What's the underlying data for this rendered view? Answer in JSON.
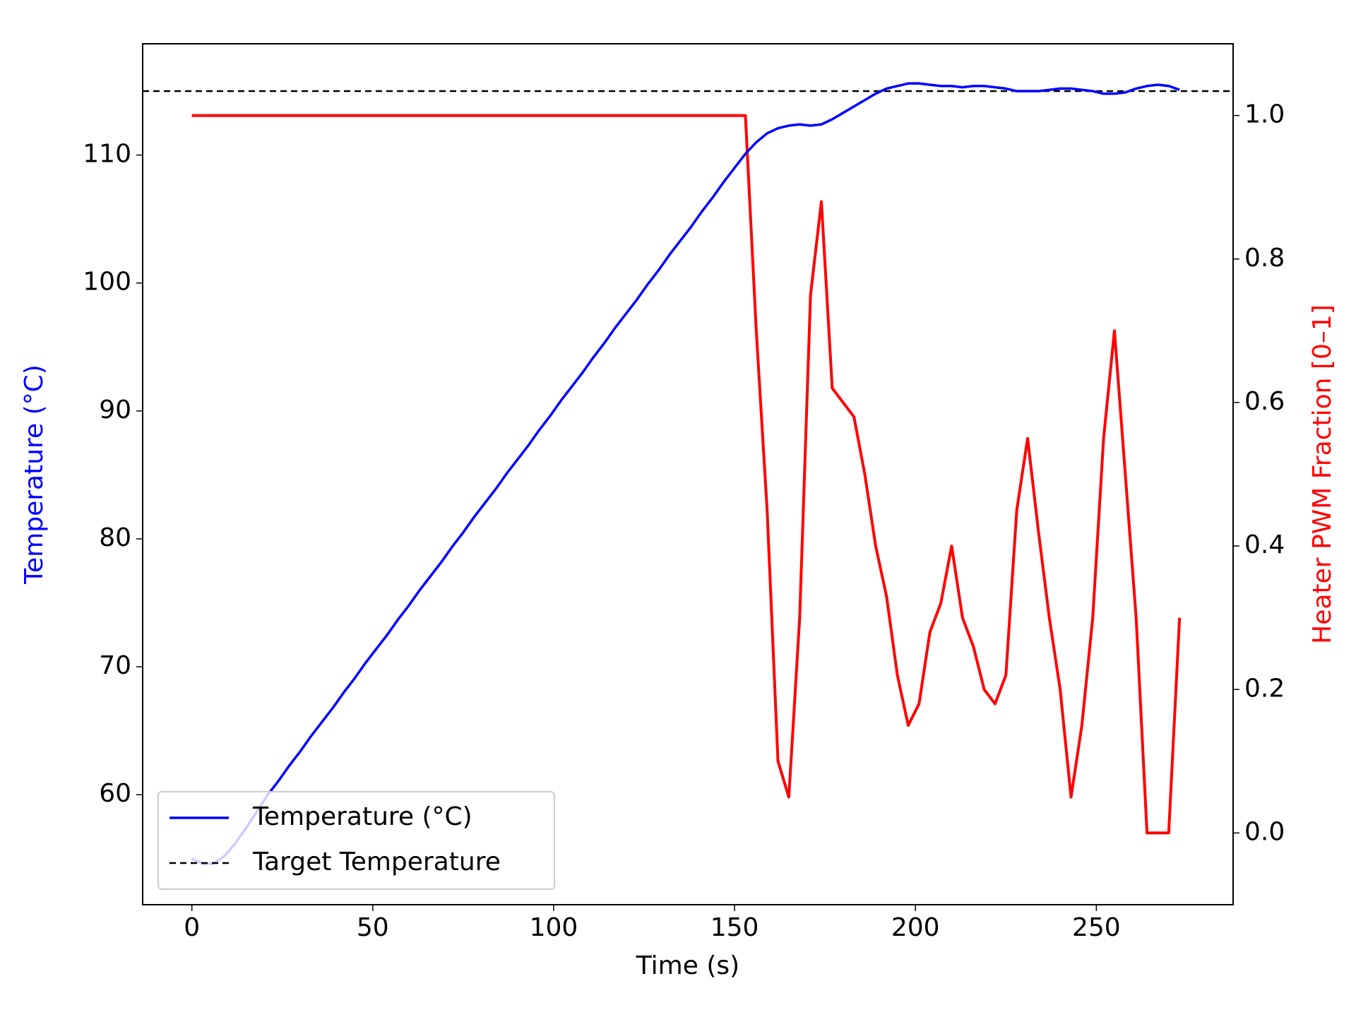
{
  "chart_data": {
    "type": "line",
    "xlabel": "Time (s)",
    "ylabel": "Temperature (°C)",
    "y2label": "Heater PWM Fraction [0–1]",
    "ylabel_color": "blue",
    "y2label_color": "red",
    "x": [
      0,
      3,
      6,
      9,
      12,
      15,
      18,
      21,
      24,
      27,
      30,
      33,
      36,
      39,
      42,
      45,
      48,
      51,
      54,
      57,
      60,
      63,
      66,
      69,
      72,
      75,
      78,
      81,
      84,
      87,
      90,
      93,
      96,
      99,
      102,
      105,
      108,
      111,
      114,
      117,
      120,
      123,
      126,
      129,
      132,
      135,
      138,
      141,
      144,
      147,
      150,
      153,
      156,
      159,
      162,
      165,
      168,
      171,
      174,
      177,
      180,
      183,
      186,
      189,
      192,
      195,
      198,
      201,
      204,
      207,
      210,
      213,
      216,
      219,
      222,
      225,
      228,
      231,
      234,
      237,
      240,
      243,
      246,
      249,
      252,
      255,
      258,
      261,
      264,
      267,
      270,
      273
    ],
    "series": [
      {
        "name": "Temperature (°C)",
        "color": "blue",
        "axis": "y",
        "legend": true,
        "values": [
          55.0,
          54.6,
          54.6,
          55.2,
          56.2,
          57.4,
          58.7,
          60.0,
          61.1,
          62.3,
          63.4,
          64.6,
          65.7,
          66.8,
          68.0,
          69.1,
          70.3,
          71.4,
          72.5,
          73.7,
          74.8,
          76.0,
          77.1,
          78.2,
          79.4,
          80.5,
          81.7,
          82.8,
          83.9,
          85.1,
          86.2,
          87.3,
          88.5,
          89.6,
          90.8,
          91.9,
          93.0,
          94.2,
          95.3,
          96.5,
          97.6,
          98.7,
          99.9,
          101.0,
          102.2,
          103.3,
          104.4,
          105.6,
          106.7,
          107.9,
          109.0,
          110.1,
          111.0,
          111.7,
          112.1,
          112.3,
          112.4,
          112.3,
          112.4,
          112.8,
          113.3,
          113.8,
          114.3,
          114.8,
          115.2,
          115.4,
          115.6,
          115.6,
          115.5,
          115.4,
          115.4,
          115.3,
          115.4,
          115.4,
          115.3,
          115.2,
          115.0,
          115.0,
          115.0,
          115.1,
          115.2,
          115.2,
          115.1,
          115.0,
          114.8,
          114.8,
          114.9,
          115.2,
          115.4,
          115.5,
          115.4,
          115.1
        ]
      },
      {
        "name": "Heater PWM",
        "color": "red",
        "axis": "y2",
        "legend": false,
        "values": [
          1,
          1,
          1,
          1,
          1,
          1,
          1,
          1,
          1,
          1,
          1,
          1,
          1,
          1,
          1,
          1,
          1,
          1,
          1,
          1,
          1,
          1,
          1,
          1,
          1,
          1,
          1,
          1,
          1,
          1,
          1,
          1,
          1,
          1,
          1,
          1,
          1,
          1,
          1,
          1,
          1,
          1,
          1,
          1,
          1,
          1,
          1,
          1,
          1,
          1,
          1,
          1,
          0.7,
          0.45,
          0.1,
          0.05,
          0.3,
          0.75,
          0.88,
          0.62,
          0.6,
          0.58,
          0.5,
          0.4,
          0.33,
          0.22,
          0.15,
          0.18,
          0.28,
          0.32,
          0.4,
          0.3,
          0.26,
          0.2,
          0.18,
          0.22,
          0.45,
          0.55,
          0.42,
          0.3,
          0.2,
          0.05,
          0.15,
          0.3,
          0.55,
          0.7,
          0.5,
          0.3,
          0,
          0,
          0,
          0.3
        ]
      }
    ],
    "target": {
      "name": "Target Temperature",
      "value": 115,
      "color": "black",
      "dashed": true
    },
    "legend_loc": "lower left",
    "xlim": [
      -13.6,
      287.8
    ],
    "xticks": [
      0,
      50,
      100,
      150,
      200,
      250
    ],
    "ylim": [
      51.4,
      118.7
    ],
    "yticks": [
      60,
      70,
      80,
      90,
      100,
      110
    ],
    "y2lim": [
      -0.1,
      1.1
    ],
    "y2ticks": [
      {
        "value": 0,
        "label": "0.0"
      },
      0.2,
      0.4,
      0.6,
      0.8,
      {
        "value": 1,
        "label": "1.0"
      }
    ]
  }
}
